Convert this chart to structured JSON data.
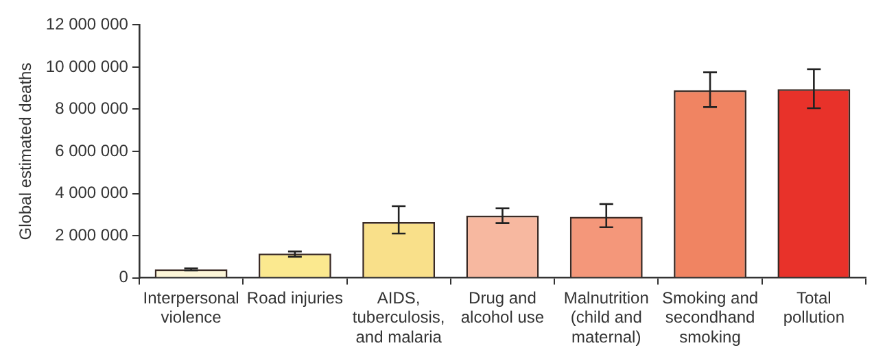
{
  "chart_data": {
    "type": "bar",
    "ylabel": "Global estimated deaths",
    "categories": [
      "Interpersonal violence",
      "Road injuries",
      "AIDS, tuberculosis, and malaria",
      "Drug and alcohol use",
      "Malnutrition (child and maternal)",
      "Smoking and secondhand smoking",
      "Total pollution"
    ],
    "values": [
      400000,
      1150000,
      2650000,
      2950000,
      2900000,
      8900000,
      8950000
    ],
    "errors": [
      [
        350000,
        450000
      ],
      [
        1000000,
        1250000
      ],
      [
        2100000,
        3400000
      ],
      [
        2600000,
        3300000
      ],
      [
        2400000,
        3500000
      ],
      [
        8100000,
        9750000
      ],
      [
        8050000,
        9900000
      ]
    ],
    "colors": [
      "#fdf6d8",
      "#fbe98f",
      "#f9e08a",
      "#f7b8a0",
      "#f4977a",
      "#f08462",
      "#e8322a"
    ],
    "ylim": [
      0,
      12000000
    ],
    "yticks": [
      0,
      {
        "value": 2000000,
        "label": "2 000 000"
      },
      {
        "value": 4000000,
        "label": "4 000 000"
      },
      {
        "value": 6000000,
        "label": "6 000 000"
      },
      {
        "value": 8000000,
        "label": "8 000 000"
      },
      {
        "value": 10000000,
        "label": "10 000 000"
      },
      {
        "value": 12000000,
        "label": "12 000 000"
      }
    ],
    "grid": false,
    "legend": false
  }
}
